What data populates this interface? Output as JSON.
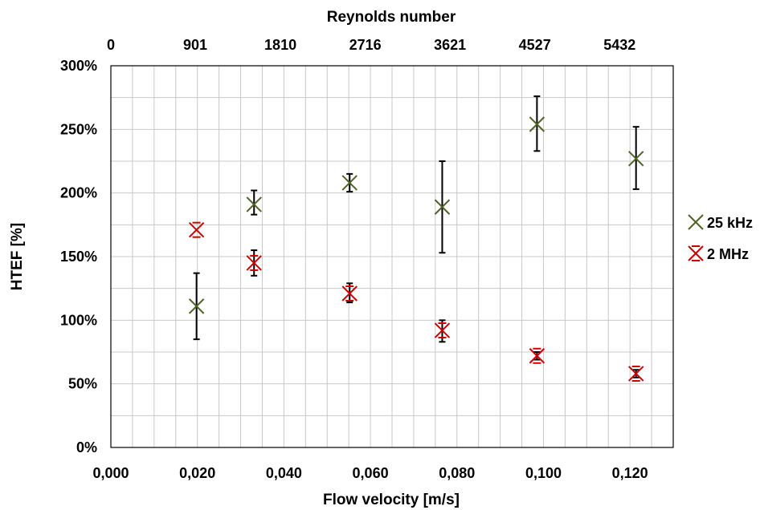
{
  "chart_data": {
    "type": "scatter",
    "xlabel": "Flow velocity [m/s]",
    "x2label": "Reynolds number",
    "ylabel": "HTEF [%]",
    "xlim": [
      0,
      0.13
    ],
    "ylim": [
      0,
      300
    ],
    "x_ticks": [
      0,
      0.02,
      0.04,
      0.06,
      0.08,
      0.1,
      0.12
    ],
    "x_tick_labels": [
      "0,000",
      "0,020",
      "0,040",
      "0,060",
      "0,080",
      "0,100",
      "0,120"
    ],
    "x2_ticks": [
      0,
      0.0195,
      0.0392,
      0.0588,
      0.0784,
      0.098,
      0.1176
    ],
    "x2_tick_labels": [
      "0",
      "901",
      "1810",
      "2716",
      "3621",
      "4527",
      "5432"
    ],
    "y_ticks": [
      0,
      50,
      100,
      150,
      200,
      250,
      300
    ],
    "y_tick_labels": [
      "0%",
      "50%",
      "100%",
      "150%",
      "200%",
      "250%",
      "300%"
    ],
    "grid": true,
    "legend_position": "right",
    "series": [
      {
        "name": "25 kHz",
        "marker": "x",
        "color": "#4f6228",
        "x": [
          0.0198,
          0.0331,
          0.0552,
          0.0766,
          0.0985,
          0.1214
        ],
        "y": [
          111,
          191,
          208,
          189,
          254,
          227
        ],
        "err_low": [
          85,
          183,
          201,
          153,
          233,
          203
        ],
        "err_high": [
          137,
          202,
          215,
          225,
          276,
          252
        ]
      },
      {
        "name": "2 MHz",
        "marker": "asterisk",
        "color": "#cc0000",
        "x": [
          0.0198,
          0.0331,
          0.0552,
          0.0766,
          0.0985,
          0.1214
        ],
        "y": [
          171,
          145,
          121,
          92,
          72,
          58
        ],
        "err_low": [
          171,
          135,
          114,
          83,
          69,
          55
        ],
        "err_high": [
          171,
          155,
          129,
          100,
          75,
          61
        ]
      }
    ]
  }
}
